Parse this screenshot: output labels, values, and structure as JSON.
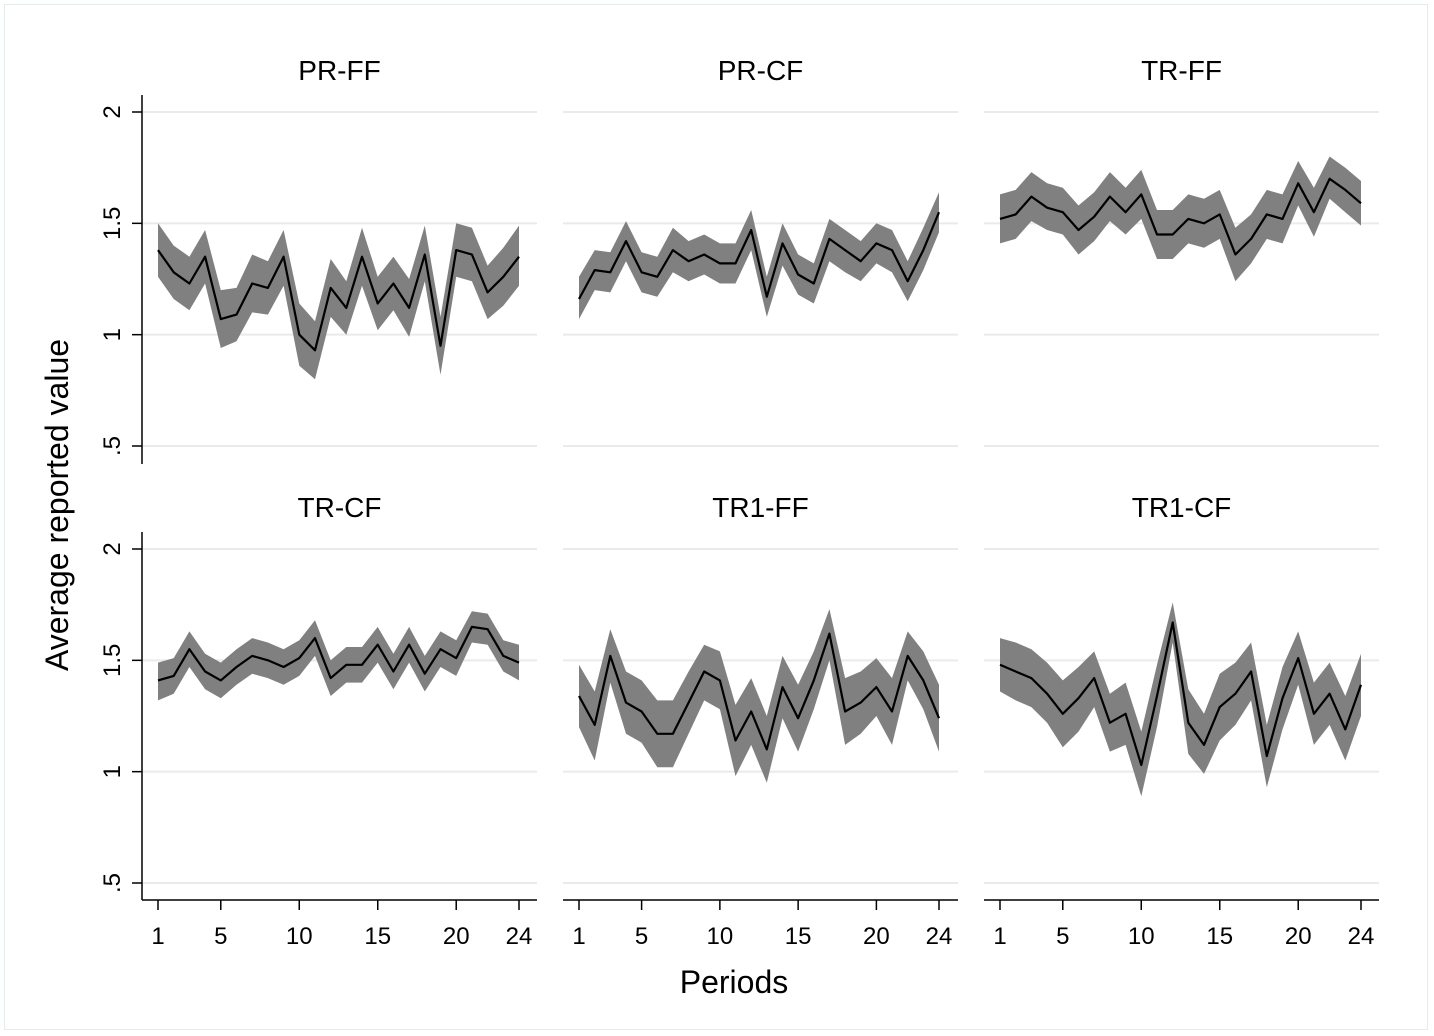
{
  "chart_data": {
    "type": "line",
    "xlabel": "Periods",
    "ylabel": "Average reported value",
    "xlim": [
      1,
      24
    ],
    "ylim": [
      0.5,
      2
    ],
    "x_ticks": [
      1,
      5,
      10,
      15,
      20,
      24
    ],
    "x_tick_labels": [
      "1",
      "5",
      "10",
      "15",
      "20",
      "24"
    ],
    "y_ticks": [
      0.5,
      1,
      1.5,
      2
    ],
    "y_tick_labels": [
      ".5",
      "1",
      "1.5",
      "2"
    ],
    "grid": true,
    "band_color": "#808080",
    "line_color": "#000000",
    "x": [
      1,
      2,
      3,
      4,
      5,
      6,
      7,
      8,
      9,
      10,
      11,
      12,
      13,
      14,
      15,
      16,
      17,
      18,
      19,
      20,
      21,
      22,
      23,
      24
    ],
    "panels": [
      {
        "title": "PR-FF",
        "mean": [
          1.38,
          1.28,
          1.23,
          1.35,
          1.07,
          1.09,
          1.23,
          1.21,
          1.35,
          1.0,
          0.93,
          1.21,
          1.12,
          1.35,
          1.14,
          1.23,
          1.12,
          1.36,
          0.95,
          1.38,
          1.36,
          1.19,
          1.26,
          1.35
        ],
        "lower": [
          1.26,
          1.16,
          1.11,
          1.23,
          0.94,
          0.97,
          1.1,
          1.09,
          1.22,
          0.86,
          0.8,
          1.08,
          1.0,
          1.22,
          1.02,
          1.11,
          0.99,
          1.24,
          0.82,
          1.26,
          1.24,
          1.07,
          1.13,
          1.22
        ],
        "upper": [
          1.5,
          1.4,
          1.35,
          1.47,
          1.2,
          1.21,
          1.36,
          1.33,
          1.47,
          1.14,
          1.06,
          1.34,
          1.24,
          1.48,
          1.26,
          1.35,
          1.25,
          1.49,
          1.08,
          1.5,
          1.48,
          1.31,
          1.39,
          1.49
        ]
      },
      {
        "title": "PR-CF",
        "mean": [
          1.16,
          1.29,
          1.28,
          1.42,
          1.28,
          1.26,
          1.38,
          1.33,
          1.36,
          1.32,
          1.32,
          1.47,
          1.17,
          1.41,
          1.27,
          1.23,
          1.43,
          1.38,
          1.33,
          1.41,
          1.38,
          1.24,
          1.38,
          1.55
        ],
        "lower": [
          1.07,
          1.2,
          1.19,
          1.33,
          1.19,
          1.17,
          1.28,
          1.24,
          1.27,
          1.23,
          1.23,
          1.38,
          1.08,
          1.31,
          1.18,
          1.14,
          1.33,
          1.28,
          1.24,
          1.32,
          1.28,
          1.15,
          1.29,
          1.46
        ],
        "upper": [
          1.26,
          1.38,
          1.37,
          1.51,
          1.37,
          1.35,
          1.48,
          1.42,
          1.45,
          1.41,
          1.41,
          1.56,
          1.26,
          1.5,
          1.36,
          1.32,
          1.52,
          1.47,
          1.42,
          1.5,
          1.47,
          1.33,
          1.48,
          1.64
        ]
      },
      {
        "title": "TR-FF",
        "mean": [
          1.52,
          1.54,
          1.62,
          1.57,
          1.55,
          1.47,
          1.53,
          1.62,
          1.55,
          1.63,
          1.45,
          1.45,
          1.52,
          1.5,
          1.54,
          1.36,
          1.43,
          1.54,
          1.52,
          1.68,
          1.55,
          1.7,
          1.65,
          1.59
        ],
        "lower": [
          1.41,
          1.43,
          1.51,
          1.47,
          1.45,
          1.36,
          1.42,
          1.51,
          1.45,
          1.52,
          1.34,
          1.34,
          1.41,
          1.39,
          1.43,
          1.24,
          1.32,
          1.43,
          1.41,
          1.58,
          1.44,
          1.61,
          1.55,
          1.49
        ],
        "upper": [
          1.63,
          1.65,
          1.73,
          1.68,
          1.66,
          1.58,
          1.64,
          1.73,
          1.66,
          1.74,
          1.56,
          1.56,
          1.63,
          1.61,
          1.65,
          1.48,
          1.54,
          1.65,
          1.63,
          1.78,
          1.66,
          1.8,
          1.75,
          1.69
        ]
      },
      {
        "title": "TR-CF",
        "mean": [
          1.41,
          1.43,
          1.55,
          1.45,
          1.41,
          1.47,
          1.52,
          1.5,
          1.47,
          1.51,
          1.6,
          1.42,
          1.48,
          1.48,
          1.57,
          1.45,
          1.57,
          1.44,
          1.55,
          1.51,
          1.65,
          1.64,
          1.52,
          1.49
        ],
        "lower": [
          1.32,
          1.35,
          1.47,
          1.37,
          1.33,
          1.39,
          1.44,
          1.42,
          1.39,
          1.43,
          1.52,
          1.34,
          1.4,
          1.4,
          1.49,
          1.37,
          1.49,
          1.36,
          1.47,
          1.43,
          1.58,
          1.57,
          1.45,
          1.41
        ],
        "upper": [
          1.49,
          1.51,
          1.63,
          1.53,
          1.49,
          1.55,
          1.6,
          1.58,
          1.55,
          1.59,
          1.68,
          1.5,
          1.56,
          1.56,
          1.65,
          1.53,
          1.65,
          1.52,
          1.63,
          1.59,
          1.72,
          1.71,
          1.59,
          1.57
        ]
      },
      {
        "title": "TR1-FF",
        "mean": [
          1.34,
          1.21,
          1.52,
          1.31,
          1.27,
          1.17,
          1.17,
          1.31,
          1.45,
          1.41,
          1.14,
          1.27,
          1.1,
          1.38,
          1.24,
          1.41,
          1.62,
          1.27,
          1.31,
          1.38,
          1.27,
          1.52,
          1.41,
          1.24
        ],
        "lower": [
          1.2,
          1.05,
          1.4,
          1.17,
          1.13,
          1.02,
          1.02,
          1.17,
          1.32,
          1.28,
          0.98,
          1.12,
          0.95,
          1.24,
          1.09,
          1.28,
          1.5,
          1.12,
          1.17,
          1.25,
          1.12,
          1.41,
          1.28,
          1.09
        ],
        "upper": [
          1.48,
          1.36,
          1.64,
          1.45,
          1.41,
          1.32,
          1.32,
          1.45,
          1.57,
          1.54,
          1.3,
          1.42,
          1.25,
          1.52,
          1.39,
          1.54,
          1.73,
          1.42,
          1.45,
          1.51,
          1.42,
          1.63,
          1.54,
          1.39
        ]
      },
      {
        "title": "TR1-CF",
        "mean": [
          1.48,
          1.45,
          1.42,
          1.35,
          1.26,
          1.33,
          1.42,
          1.22,
          1.26,
          1.03,
          1.34,
          1.67,
          1.22,
          1.12,
          1.29,
          1.35,
          1.45,
          1.07,
          1.33,
          1.51,
          1.26,
          1.35,
          1.19,
          1.39
        ],
        "lower": [
          1.36,
          1.32,
          1.29,
          1.22,
          1.11,
          1.18,
          1.29,
          1.09,
          1.12,
          0.89,
          1.2,
          1.58,
          1.08,
          0.99,
          1.14,
          1.21,
          1.32,
          0.93,
          1.19,
          1.39,
          1.12,
          1.21,
          1.05,
          1.25
        ],
        "upper": [
          1.6,
          1.58,
          1.55,
          1.49,
          1.41,
          1.47,
          1.54,
          1.35,
          1.4,
          1.18,
          1.48,
          1.76,
          1.37,
          1.26,
          1.44,
          1.49,
          1.58,
          1.21,
          1.47,
          1.63,
          1.4,
          1.49,
          1.34,
          1.53
        ]
      }
    ]
  }
}
